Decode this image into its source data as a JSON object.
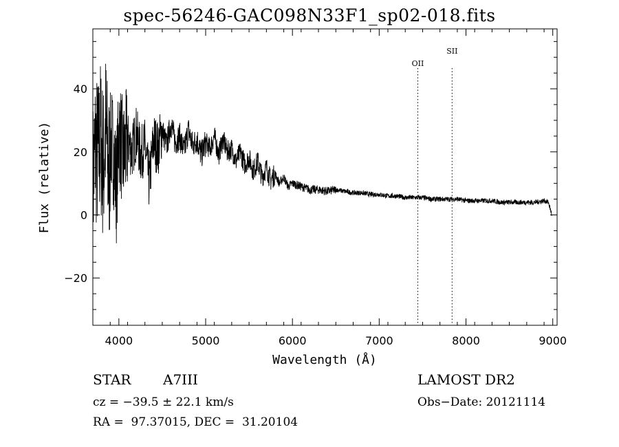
{
  "chart_data": {
    "type": "line",
    "title": "spec-56246-GAC098N33F1_sp02-018.fits",
    "xlabel": "Wavelength (Å)",
    "ylabel": "Flux (relative)",
    "xlim": [
      3700,
      9050
    ],
    "ylim": [
      -35,
      59
    ],
    "x_ticks": [
      4000,
      5000,
      6000,
      7000,
      8000,
      9000
    ],
    "y_ticks": [
      -20,
      0,
      20,
      40
    ],
    "x_tick_labels": [
      "4000",
      "5000",
      "6000",
      "7000",
      "8000",
      "9000"
    ],
    "y_tick_labels": [
      "−20",
      "0",
      "20",
      "40"
    ],
    "lines": [
      {
        "label": "OII",
        "x": 7445
      },
      {
        "label": "SII",
        "x": 7840
      }
    ],
    "series": [
      {
        "name": "spectrum",
        "x": [
          3700,
          3730,
          3760,
          3790,
          3820,
          3850,
          3880,
          3910,
          3940,
          3970,
          4000,
          4050,
          4100,
          4150,
          4200,
          4250,
          4300,
          4350,
          4400,
          4450,
          4500,
          4550,
          4600,
          4650,
          4700,
          4750,
          4800,
          4850,
          4900,
          4950,
          5000,
          5050,
          5100,
          5150,
          5200,
          5250,
          5300,
          5350,
          5400,
          5450,
          5500,
          5550,
          5600,
          5650,
          5700,
          5750,
          5800,
          5850,
          5900,
          5950,
          6000,
          6100,
          6200,
          6300,
          6400,
          6500,
          6600,
          6700,
          6800,
          6900,
          7000,
          7100,
          7200,
          7300,
          7400,
          7500,
          7600,
          7700,
          7800,
          7900,
          8000,
          8100,
          8200,
          8300,
          8400,
          8500,
          8600,
          8700,
          8800,
          8900,
          8950,
          8990
        ],
        "values": [
          10,
          22,
          18,
          25,
          15,
          28,
          12,
          24,
          20,
          8,
          27,
          18,
          24,
          20,
          26,
          19,
          22,
          10,
          24,
          21,
          27,
          22,
          29,
          23,
          25,
          20,
          27,
          22,
          24,
          19,
          23,
          21,
          25,
          19,
          24,
          20,
          21,
          17,
          20,
          16,
          18,
          14,
          17,
          12,
          15,
          11,
          13,
          10,
          12,
          9,
          10,
          9,
          8,
          8,
          7.5,
          8,
          7.5,
          7,
          7,
          6.5,
          6.5,
          6,
          6,
          5.5,
          5.5,
          5.5,
          5,
          5,
          5,
          5,
          4.5,
          4.5,
          4.5,
          4.5,
          4,
          4,
          4,
          4,
          4,
          4.5,
          4,
          0
        ]
      }
    ]
  },
  "info": {
    "object_type": "STAR",
    "spectral_class": "A7III",
    "survey": "LAMOST DR2",
    "cz": "cz = −39.5 ± 22.1 km/s",
    "obs_date": "Obs−Date: 20121114",
    "coords": "RA =  97.37015, DEC =  31.20104"
  }
}
